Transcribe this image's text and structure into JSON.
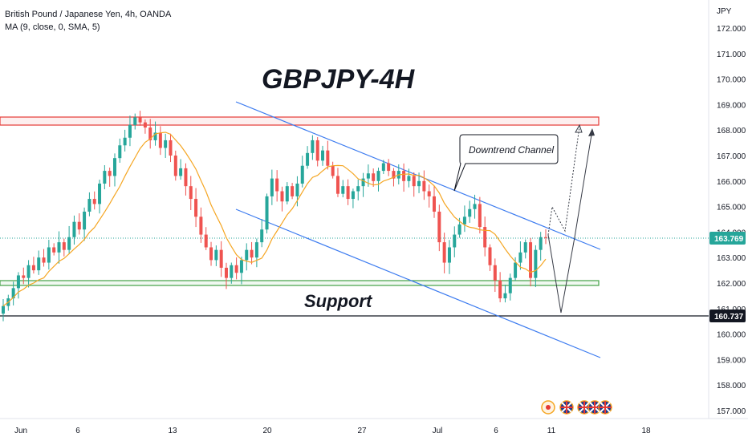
{
  "header": {
    "symbol_line": "British Pound / Japanese Yen, 4h, OANDA",
    "indicator_line": "MA (9, close, 0, SMA, 5)"
  },
  "colors": {
    "up": "#26a69a",
    "down": "#ef5350",
    "ma": "#f5a623",
    "channel": "#3d7cf0",
    "resistance": "#e53935",
    "support_zone": "#43a047",
    "price_line": "#26a69a"
  },
  "chart_data": {
    "type": "candlestick",
    "title": "GBPJPY-4H",
    "y_unit": "JPY",
    "ylim": [
      156.7,
      172.3
    ],
    "y_ticks": [
      "172.000",
      "171.000",
      "170.000",
      "169.000",
      "168.000",
      "167.000",
      "166.000",
      "165.000",
      "164.000",
      "163.000",
      "162.000",
      "161.000",
      "160.000",
      "159.000",
      "158.000",
      "157.000"
    ],
    "x_ticks": [
      "Jun",
      "6",
      "13",
      "20",
      "27",
      "Jul",
      "6",
      "11",
      "18"
    ],
    "price_labels": {
      "current": "163.769",
      "support": "160.737"
    },
    "annotations": {
      "channel": "Downtrend Channel",
      "support": "Support"
    },
    "resistance_zone": [
      168.15,
      168.45
    ],
    "support_zone": [
      161.95,
      162.1
    ],
    "support_line": 160.737,
    "closes": [
      161.1,
      161.4,
      161.8,
      162.3,
      162.2,
      162.7,
      162.5,
      163.0,
      162.8,
      163.4,
      163.2,
      163.6,
      163.3,
      163.8,
      164.4,
      164.1,
      164.8,
      165.3,
      165.1,
      165.9,
      166.4,
      166.2,
      166.9,
      167.4,
      167.7,
      168.2,
      168.5,
      168.3,
      168.1,
      167.6,
      167.9,
      167.3,
      167.6,
      167.0,
      166.2,
      166.5,
      165.8,
      165.3,
      164.6,
      163.9,
      163.4,
      162.9,
      163.3,
      162.6,
      162.2,
      162.7,
      162.4,
      162.9,
      163.3,
      163.0,
      163.6,
      164.1,
      165.4,
      166.1,
      165.6,
      165.2,
      165.8,
      165.4,
      165.9,
      166.6,
      167.1,
      167.6,
      166.8,
      167.2,
      166.6,
      166.2,
      165.5,
      165.8,
      165.3,
      165.6,
      165.8,
      166.1,
      166.3,
      166.0,
      166.4,
      166.7,
      166.4,
      166.1,
      166.4,
      166.0,
      166.2,
      165.8,
      166.0,
      165.6,
      165.4,
      164.8,
      163.6,
      162.8,
      163.4,
      163.9,
      164.3,
      164.6,
      164.9,
      165.1,
      164.2,
      163.4,
      162.7,
      162.1,
      161.4,
      161.6,
      162.2,
      162.8,
      163.2,
      163.6,
      162.2,
      163.3,
      163.8,
      163.769
    ],
    "ma_period": 9
  }
}
